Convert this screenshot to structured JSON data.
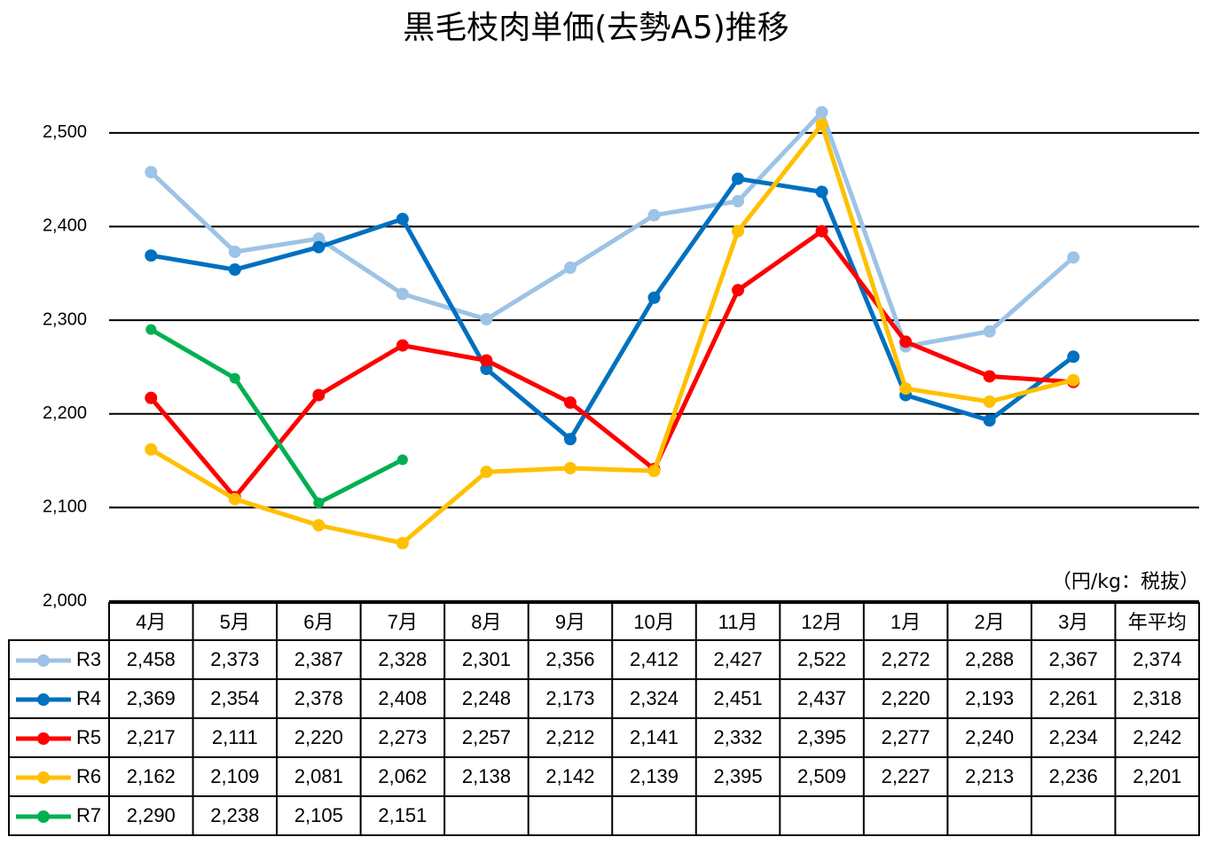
{
  "chart_data": {
    "type": "line",
    "title": "黒毛枝肉単価(去勢A5)推移",
    "unit_note": "（円/kg：税抜）",
    "categories": [
      "4月",
      "5月",
      "6月",
      "7月",
      "8月",
      "9月",
      "10月",
      "11月",
      "12月",
      "1月",
      "2月",
      "3月"
    ],
    "average_header": "年平均",
    "ylim": [
      2000,
      2550
    ],
    "yticks": [
      {
        "value": 2000,
        "label": "2,000"
      },
      {
        "value": 2100,
        "label": "2,100"
      },
      {
        "value": 2200,
        "label": "2,200"
      },
      {
        "value": 2300,
        "label": "2,300"
      },
      {
        "value": 2400,
        "label": "2,400"
      },
      {
        "value": 2500,
        "label": "2,500"
      }
    ],
    "grid": true,
    "series": [
      {
        "name": "R3",
        "color": "#9dc3e6",
        "values": [
          2458,
          2373,
          2387,
          2328,
          2301,
          2356,
          2412,
          2427,
          2522,
          2272,
          2288,
          2367
        ],
        "value_labels": [
          "2,458",
          "2,373",
          "2,387",
          "2,328",
          "2,301",
          "2,356",
          "2,412",
          "2,427",
          "2,522",
          "2,272",
          "2,288",
          "2,367"
        ],
        "average": 2374,
        "average_label": "2,374"
      },
      {
        "name": "R4",
        "color": "#0070c0",
        "values": [
          2369,
          2354,
          2378,
          2408,
          2248,
          2173,
          2324,
          2451,
          2437,
          2220,
          2193,
          2261
        ],
        "value_labels": [
          "2,369",
          "2,354",
          "2,378",
          "2,408",
          "2,248",
          "2,173",
          "2,324",
          "2,451",
          "2,437",
          "2,220",
          "2,193",
          "2,261"
        ],
        "average": 2318,
        "average_label": "2,318"
      },
      {
        "name": "R5",
        "color": "#ff0000",
        "values": [
          2217,
          2111,
          2220,
          2273,
          2257,
          2212,
          2141,
          2332,
          2395,
          2277,
          2240,
          2234
        ],
        "value_labels": [
          "2,217",
          "2,111",
          "2,220",
          "2,273",
          "2,257",
          "2,212",
          "2,141",
          "2,332",
          "2,395",
          "2,277",
          "2,240",
          "2,234"
        ],
        "average": 2242,
        "average_label": "2,242"
      },
      {
        "name": "R6",
        "color": "#ffc000",
        "values": [
          2162,
          2109,
          2081,
          2062,
          2138,
          2142,
          2139,
          2395,
          2509,
          2227,
          2213,
          2236
        ],
        "value_labels": [
          "2,162",
          "2,109",
          "2,081",
          "2,062",
          "2,138",
          "2,142",
          "2,139",
          "2,395",
          "2,509",
          "2,227",
          "2,213",
          "2,236"
        ],
        "average": 2201,
        "average_label": "2,201"
      },
      {
        "name": "R7",
        "color": "#00b050",
        "values": [
          2290,
          2238,
          2105,
          2151,
          null,
          null,
          null,
          null,
          null,
          null,
          null,
          null
        ],
        "value_labels": [
          "2,290",
          "2,238",
          "2,105",
          "2,151",
          null,
          null,
          null,
          null,
          null,
          null,
          null,
          null
        ]
      }
    ]
  }
}
